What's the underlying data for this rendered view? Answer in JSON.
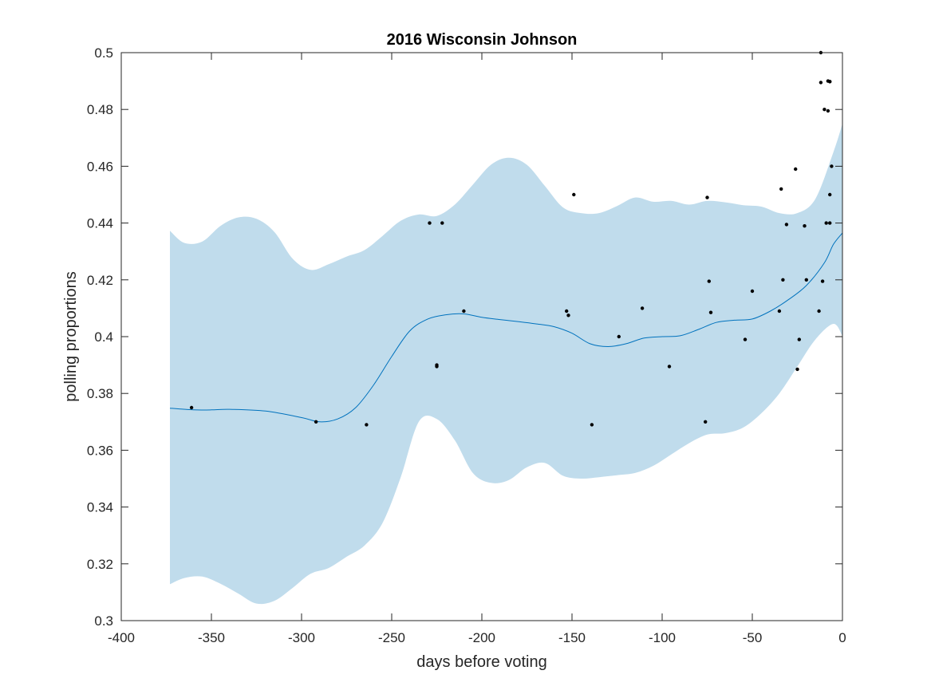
{
  "chart_data": {
    "type": "scatter",
    "title": "2016 Wisconsin Johnson",
    "xlabel": "days before voting",
    "ylabel": "polling proportions",
    "xlim": [
      -400,
      0
    ],
    "ylim": [
      0.3,
      0.5
    ],
    "x_ticks": [
      -400,
      -350,
      -300,
      -250,
      -200,
      -150,
      -100,
      -50,
      0
    ],
    "x_tick_labels": [
      "-400",
      "-350",
      "-300",
      "-250",
      "-200",
      "-150",
      "-100",
      "-50",
      "0"
    ],
    "y_ticks": [
      0.3,
      0.32,
      0.34,
      0.36,
      0.38,
      0.4,
      0.42,
      0.44,
      0.46,
      0.48,
      0.5
    ],
    "y_tick_labels": [
      "0.3",
      "0.32",
      "0.34",
      "0.36",
      "0.38",
      "0.4",
      "0.42",
      "0.44",
      "0.46",
      "0.48",
      "0.5"
    ],
    "grid": false,
    "colors": {
      "band": "#c0dcec",
      "trend": "#0072bd",
      "points": "#000000",
      "axes": "#262626"
    },
    "trend": {
      "x": [
        -373,
        -360,
        -350,
        -340,
        -320,
        -300,
        -290,
        -280,
        -270,
        -260,
        -250,
        -240,
        -230,
        -220,
        -210,
        -200,
        -190,
        -180,
        -170,
        -160,
        -150,
        -140,
        -130,
        -120,
        -110,
        -100,
        -90,
        -80,
        -70,
        -60,
        -50,
        -40,
        -30,
        -20,
        -10,
        -5,
        0
      ],
      "y": [
        0.3748,
        0.3742,
        0.3742,
        0.3744,
        0.3738,
        0.3715,
        0.37,
        0.371,
        0.375,
        0.383,
        0.393,
        0.402,
        0.4062,
        0.4077,
        0.408,
        0.4068,
        0.406,
        0.4053,
        0.4045,
        0.4035,
        0.4012,
        0.3975,
        0.3965,
        0.3975,
        0.3995,
        0.4,
        0.4003,
        0.4025,
        0.405,
        0.4058,
        0.4062,
        0.409,
        0.413,
        0.418,
        0.426,
        0.4325,
        0.4365
      ]
    },
    "band": {
      "x": [
        -373,
        -365,
        -355,
        -345,
        -335,
        -325,
        -315,
        -305,
        -295,
        -285,
        -275,
        -265,
        -255,
        -245,
        -235,
        -225,
        -215,
        -205,
        -195,
        -185,
        -175,
        -165,
        -155,
        -145,
        -135,
        -125,
        -115,
        -105,
        -95,
        -85,
        -75,
        -65,
        -55,
        -45,
        -35,
        -25,
        -15,
        -5,
        0
      ],
      "upper": [
        0.4373,
        0.433,
        0.4335,
        0.439,
        0.442,
        0.4415,
        0.4368,
        0.4275,
        0.4235,
        0.4255,
        0.4282,
        0.4305,
        0.4355,
        0.4408,
        0.443,
        0.4425,
        0.4465,
        0.4535,
        0.4605,
        0.463,
        0.4605,
        0.453,
        0.4455,
        0.4435,
        0.4435,
        0.446,
        0.449,
        0.4475,
        0.4478,
        0.4465,
        0.4478,
        0.4473,
        0.4463,
        0.4458,
        0.4435,
        0.4435,
        0.4485,
        0.465,
        0.475
      ],
      "lower": [
        0.3128,
        0.315,
        0.3155,
        0.313,
        0.3095,
        0.306,
        0.307,
        0.3115,
        0.3165,
        0.3185,
        0.3225,
        0.3265,
        0.3345,
        0.3505,
        0.37,
        0.371,
        0.3635,
        0.352,
        0.3485,
        0.3495,
        0.354,
        0.3555,
        0.351,
        0.35,
        0.3505,
        0.3512,
        0.352,
        0.3545,
        0.3585,
        0.3625,
        0.3655,
        0.366,
        0.368,
        0.373,
        0.38,
        0.3895,
        0.399,
        0.4045,
        0.4002
      ]
    },
    "points": {
      "x": [
        -361,
        -292,
        -264,
        -229,
        -225,
        -225,
        -222,
        -210,
        -153,
        -152,
        -149,
        -139,
        -124,
        -111,
        -96,
        -76,
        -75,
        -74,
        -73,
        -54,
        -50,
        -35,
        -34,
        -33,
        -31,
        -26,
        -25,
        -24,
        -21,
        -20,
        -13,
        -12,
        -12,
        -11,
        -10,
        -9,
        -8,
        -8,
        -7,
        -7,
        -7,
        -7,
        -6
      ],
      "y": [
        0.375,
        0.37,
        0.369,
        0.44,
        0.39,
        0.3895,
        0.44,
        0.409,
        0.409,
        0.4075,
        0.45,
        0.369,
        0.4,
        0.41,
        0.3895,
        0.37,
        0.449,
        0.4195,
        0.4085,
        0.399,
        0.416,
        0.409,
        0.452,
        0.42,
        0.4395,
        0.459,
        0.3885,
        0.399,
        0.439,
        0.42,
        0.409,
        0.4895,
        0.5,
        0.4195,
        0.48,
        0.44,
        0.4795,
        0.49,
        0.44,
        0.45,
        0.4898,
        0.4898,
        0.46
      ]
    }
  }
}
